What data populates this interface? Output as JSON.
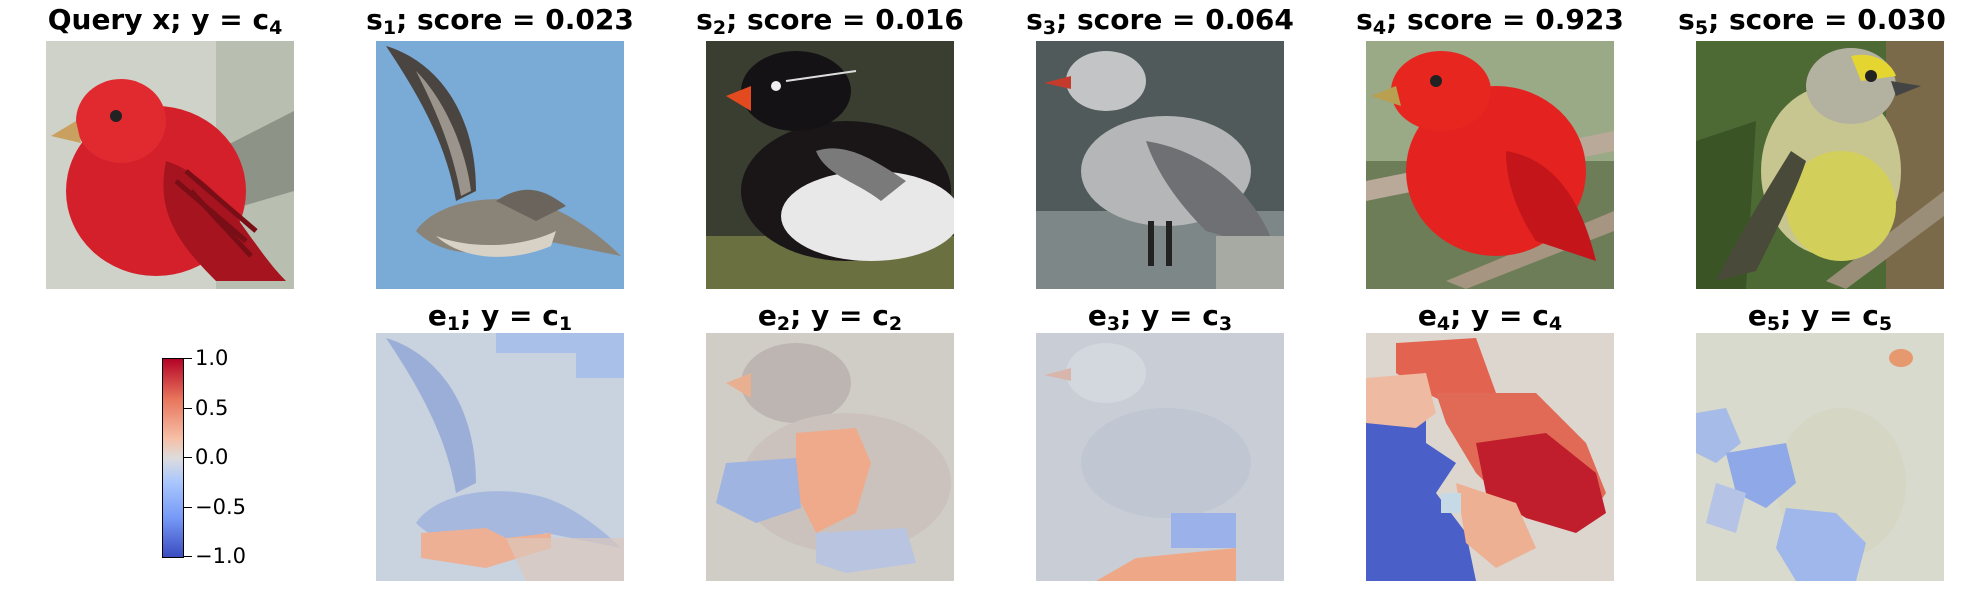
{
  "top_row": [
    {
      "name": "Query x",
      "label_main": "Query x; y = c",
      "label_sub": "4",
      "prefix": "",
      "prefix_sub": "",
      "score": ""
    },
    {
      "label_main": "s",
      "label_sub": "1",
      "score": "; score = 0.023"
    },
    {
      "label_main": "s",
      "label_sub": "2",
      "score": "; score = 0.016"
    },
    {
      "label_main": "s",
      "label_sub": "3",
      "score": "; score = 0.064"
    },
    {
      "label_main": "s",
      "label_sub": "4",
      "score": "; score = 0.923"
    },
    {
      "label_main": "s",
      "label_sub": "5",
      "score": "; score = 0.030"
    }
  ],
  "bottom_row": [
    {
      "e": "e",
      "e_sub": "1",
      "mid": "; y = c",
      "c_sub": "1"
    },
    {
      "e": "e",
      "e_sub": "2",
      "mid": "; y = c",
      "c_sub": "2"
    },
    {
      "e": "e",
      "e_sub": "3",
      "mid": "; y = c",
      "c_sub": "3"
    },
    {
      "e": "e",
      "e_sub": "4",
      "mid": "; y = c",
      "c_sub": "4"
    },
    {
      "e": "e",
      "e_sub": "5",
      "mid": "; y = c",
      "c_sub": "5"
    }
  ],
  "colorbar": {
    "ticks": [
      "1.0",
      "0.5",
      "0.0",
      "−0.5",
      "−1.0"
    ],
    "colormap": "coolwarm",
    "high_color": "#b40426",
    "low_color": "#3b4cc0",
    "mid_color": "#dddcdc"
  }
}
